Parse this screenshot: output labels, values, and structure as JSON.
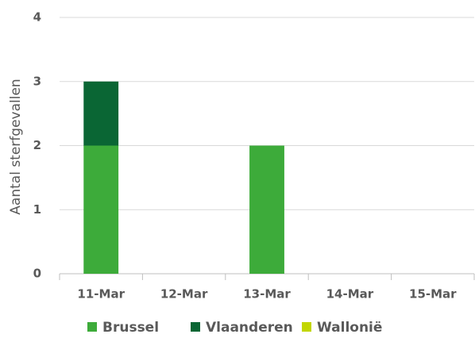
{
  "chart_data": {
    "type": "stacked_bar",
    "y_label": "Aantal sterfgevallen",
    "categories": [
      "11-Mar",
      "12-Mar",
      "13-Mar",
      "14-Mar",
      "15-Mar"
    ],
    "series": [
      {
        "name": "Brussel",
        "color": "#3dab3a",
        "values": [
          2,
          0,
          2,
          0,
          0
        ]
      },
      {
        "name": "Vlaanderen",
        "color": "#0a6634",
        "values": [
          1,
          0,
          0,
          0,
          0
        ]
      },
      {
        "name": "Wallonië",
        "color": "#c2d600",
        "values": [
          0,
          0,
          0,
          0,
          0
        ]
      }
    ],
    "ylim": [
      0,
      4
    ],
    "yticks": [
      0,
      1,
      2,
      3,
      4
    ],
    "grid": true
  }
}
